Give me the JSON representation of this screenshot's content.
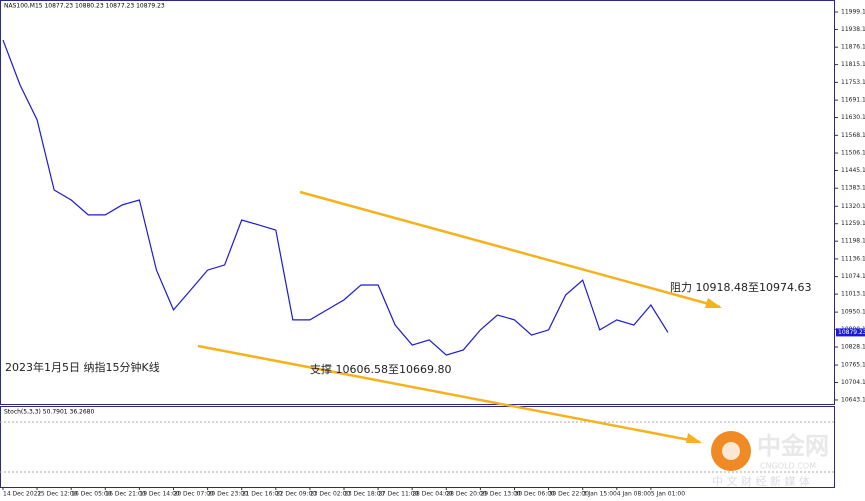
{
  "chart_data": {
    "type": "line",
    "title": "NAS100,M15  10877.23 10880.23 10877.23 10879.23",
    "categories": [
      "14 Dec 2022",
      null,
      "15 Dec 12:00",
      null,
      "16 Dec 05:00",
      null,
      "16 Dec 21:00",
      null,
      "19 Dec 14:00",
      null,
      "20 Dec 07:00",
      null,
      "20 Dec 23:00",
      null,
      "21 Dec 16:00",
      null,
      "22 Dec 09:00",
      null,
      "23 Dec 02:00",
      null,
      "23 Dec 18:00",
      null,
      "27 Dec 11:00",
      null,
      "28 Dec 04:00",
      null,
      "28 Dec 20:00",
      null,
      "29 Dec 13:00",
      null,
      "30 Dec 06:00",
      null,
      "30 Dec 22:00",
      null,
      "3 Jan 15:00",
      null,
      "4 Jan 08:00",
      null,
      "5 Jan 01:00",
      null
    ],
    "series": [
      {
        "name": "NAS100",
        "color": "#1a1ad6",
        "values": [
          11901,
          11744,
          11622,
          11377,
          11342,
          11290,
          11290,
          11325,
          11342,
          11097,
          10958,
          11027,
          11097,
          11115,
          11272,
          11255,
          11237,
          10923,
          10923,
          10958,
          10993,
          11045,
          11045,
          10905,
          10835,
          10853,
          10800,
          10818,
          10888,
          10940,
          10923,
          10870,
          10888,
          11010,
          11062,
          10888,
          10923,
          10905,
          10975,
          10879
        ]
      }
    ],
    "ylim": [
      10629,
      12041
    ],
    "yticks": [
      {
        "value": 11999.1,
        "label": "11999.10"
      },
      {
        "value": 11938.1,
        "label": "11938.10"
      },
      {
        "value": 11876.1,
        "label": "11876.10"
      },
      {
        "value": 11815.1,
        "label": "11815.10"
      },
      {
        "value": 11753.1,
        "label": "11753.10"
      },
      {
        "value": 11691.1,
        "label": "11691.10"
      },
      {
        "value": 11630.1,
        "label": "11630.10"
      },
      {
        "value": 11568.1,
        "label": "11568.10"
      },
      {
        "value": 11506.1,
        "label": "11506.10"
      },
      {
        "value": 11445.1,
        "label": "11445.10"
      },
      {
        "value": 11383.1,
        "label": "11383.10"
      },
      {
        "value": 11320.1,
        "label": "11320.10"
      },
      {
        "value": 11259.1,
        "label": "11259.10"
      },
      {
        "value": 11198.1,
        "label": "11198.10"
      },
      {
        "value": 11136.1,
        "label": "11136.10"
      },
      {
        "value": 11074.1,
        "label": "11074.10"
      },
      {
        "value": 11013.1,
        "label": "11013.10"
      },
      {
        "value": 10950.1,
        "label": "10950.10"
      },
      {
        "value": 10890.1,
        "label": "10890.10"
      },
      {
        "value": 10828.1,
        "label": "10828.10"
      },
      {
        "value": 10765.1,
        "label": "10765.10"
      },
      {
        "value": 10704.1,
        "label": "10704.10"
      },
      {
        "value": 10643.1,
        "label": "10643.10"
      }
    ],
    "current_price": {
      "value": 10879.23,
      "label": "10879.23"
    },
    "annotations": [
      "阻力 10918.48至10974.63",
      "支撑 10606.58至10669.80",
      "2023年1月5日 纳指15分钟K线"
    ],
    "indicator": "Stoch(5,3,3) 50.7901 36.2680",
    "watermark": {
      "name": "中金网",
      "site": "CNGOLD.COM",
      "slogan": "中 文 财 经 新 媒 体"
    }
  }
}
